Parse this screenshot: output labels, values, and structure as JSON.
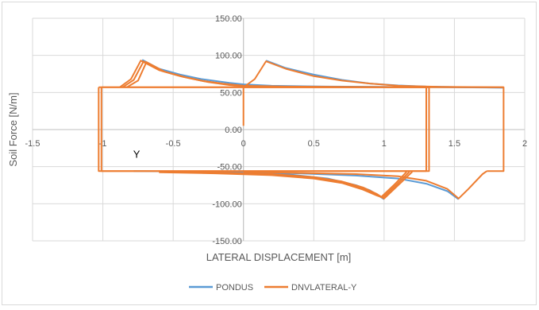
{
  "chart_data": {
    "type": "line",
    "title": "",
    "xlabel": "LATERAL DISPLACEMENT [m]",
    "ylabel": "Soil Force [N/m]",
    "xlim": [
      -1.5,
      2
    ],
    "ylim": [
      -150,
      150
    ],
    "x_ticks": [
      "-1.5",
      "-1",
      "-0.5",
      "0",
      "0.5",
      "1",
      "1.5",
      "2"
    ],
    "y_ticks": [
      "150.00",
      "100.00",
      "50.00",
      "0.00",
      "-50.00",
      "-100.00",
      "-150.00"
    ],
    "x_tick_values": [
      -1.5,
      -1,
      -0.5,
      0,
      0.5,
      1,
      1.5,
      2
    ],
    "y_tick_values": [
      150,
      100,
      50,
      0,
      -50,
      -100,
      -150
    ],
    "grid": true,
    "legend": "bottom",
    "annotations": [
      {
        "text": "Y",
        "x": -0.76,
        "y": -38
      }
    ],
    "series": [
      {
        "name": "PONDUS",
        "color": "#5b9bd5",
        "paths": [
          [
            [
              -0.72,
              94
            ],
            [
              -0.6,
              82
            ],
            [
              -0.45,
              74
            ],
            [
              -0.3,
              68
            ],
            [
              -0.1,
              63
            ],
            [
              0.0,
              61
            ],
            [
              0.2,
              59
            ],
            [
              0.6,
              58
            ],
            [
              1.0,
              57.5
            ],
            [
              1.4,
              57
            ],
            [
              1.85,
              56.5
            ]
          ],
          [
            [
              0.16,
              93
            ],
            [
              0.3,
              83
            ],
            [
              0.5,
              74
            ],
            [
              0.7,
              67
            ],
            [
              0.9,
              62
            ],
            [
              1.1,
              59.5
            ],
            [
              1.3,
              58
            ],
            [
              1.6,
              57
            ],
            [
              1.85,
              56.5
            ]
          ],
          [
            [
              -0.78,
              -56
            ],
            [
              -0.4,
              -56.5
            ],
            [
              0.0,
              -58
            ],
            [
              0.3,
              -60
            ],
            [
              0.6,
              -66
            ],
            [
              0.8,
              -75
            ],
            [
              0.9,
              -82
            ],
            [
              0.96,
              -89
            ],
            [
              1.0,
              -94
            ]
          ],
          [
            [
              0.0,
              -57
            ],
            [
              0.4,
              -59
            ],
            [
              0.8,
              -62
            ],
            [
              1.1,
              -66
            ],
            [
              1.3,
              -73
            ],
            [
              1.45,
              -83
            ],
            [
              1.53,
              -94
            ]
          ]
        ]
      },
      {
        "name": "DNVLATERAL-Y",
        "color": "#ed7d31",
        "paths": [
          [
            [
              -1.03,
              57
            ],
            [
              -1.03,
              -56
            ],
            [
              1.3,
              -56
            ],
            [
              1.3,
              57
            ],
            [
              -1.03,
              57
            ]
          ],
          [
            [
              -1.01,
              57
            ],
            [
              -1.01,
              -56
            ],
            [
              1.32,
              -56
            ],
            [
              1.32,
              57
            ],
            [
              -1.01,
              57
            ]
          ],
          [
            [
              0.0,
              57
            ],
            [
              0.0,
              57
            ],
            [
              1.85,
              57
            ],
            [
              1.85,
              -56
            ],
            [
              1.73,
              -56
            ]
          ],
          [
            [
              -0.88,
              57
            ],
            [
              -0.8,
              68
            ],
            [
              -0.73,
              93
            ],
            [
              -0.6,
              80
            ],
            [
              -0.45,
              72
            ],
            [
              -0.3,
              66
            ],
            [
              -0.15,
              62
            ],
            [
              0.0,
              59
            ],
            [
              0.3,
              58
            ],
            [
              0.7,
              57.5
            ],
            [
              1.3,
              57
            ]
          ],
          [
            [
              -0.86,
              57
            ],
            [
              -0.78,
              67
            ],
            [
              -0.71,
              92
            ],
            [
              -0.58,
              79
            ],
            [
              -0.43,
              71
            ],
            [
              -0.28,
              65
            ],
            [
              -0.12,
              61
            ],
            [
              0.0,
              59
            ]
          ],
          [
            [
              -0.83,
              57
            ],
            [
              -0.75,
              66
            ],
            [
              -0.69,
              91
            ],
            [
              -0.56,
              78
            ],
            [
              -0.4,
              70
            ],
            [
              -0.25,
              64
            ],
            [
              -0.1,
              60
            ],
            [
              0.0,
              58.5
            ]
          ],
          [
            [
              0.0,
              5
            ],
            [
              0.0,
              57
            ],
            [
              0.08,
              68
            ],
            [
              0.16,
              92
            ],
            [
              0.3,
              82
            ],
            [
              0.5,
              72
            ],
            [
              0.7,
              66
            ],
            [
              0.9,
              62
            ],
            [
              1.1,
              59
            ],
            [
              1.4,
              57.5
            ],
            [
              1.85,
              57
            ]
          ],
          [
            [
              -0.6,
              -57
            ],
            [
              -0.2,
              -58
            ],
            [
              0.2,
              -60
            ],
            [
              0.5,
              -64
            ],
            [
              0.7,
              -70
            ],
            [
              0.85,
              -78
            ],
            [
              0.95,
              -87
            ],
            [
              1.0,
              -93
            ],
            [
              1.1,
              -75
            ],
            [
              1.2,
              -57
            ]
          ],
          [
            [
              -0.6,
              -57
            ],
            [
              -0.2,
              -58.5
            ],
            [
              0.2,
              -61
            ],
            [
              0.5,
              -65
            ],
            [
              0.7,
              -71
            ],
            [
              0.85,
              -80
            ],
            [
              0.95,
              -88
            ],
            [
              0.99,
              -92
            ],
            [
              1.09,
              -74
            ],
            [
              1.18,
              -57
            ]
          ],
          [
            [
              -0.6,
              -57.5
            ],
            [
              -0.2,
              -59
            ],
            [
              0.2,
              -61.5
            ],
            [
              0.5,
              -66
            ],
            [
              0.7,
              -72
            ],
            [
              0.85,
              -81
            ],
            [
              0.95,
              -89
            ],
            [
              0.98,
              -91
            ],
            [
              1.08,
              -73
            ],
            [
              1.16,
              -57
            ]
          ],
          [
            [
              0.0,
              -57
            ],
            [
              0.4,
              -58.5
            ],
            [
              0.8,
              -60
            ],
            [
              1.1,
              -63
            ],
            [
              1.3,
              -69
            ],
            [
              1.45,
              -80
            ],
            [
              1.53,
              -93
            ],
            [
              1.6,
              -80
            ],
            [
              1.7,
              -60
            ],
            [
              1.73,
              -56
            ]
          ]
        ]
      }
    ]
  }
}
